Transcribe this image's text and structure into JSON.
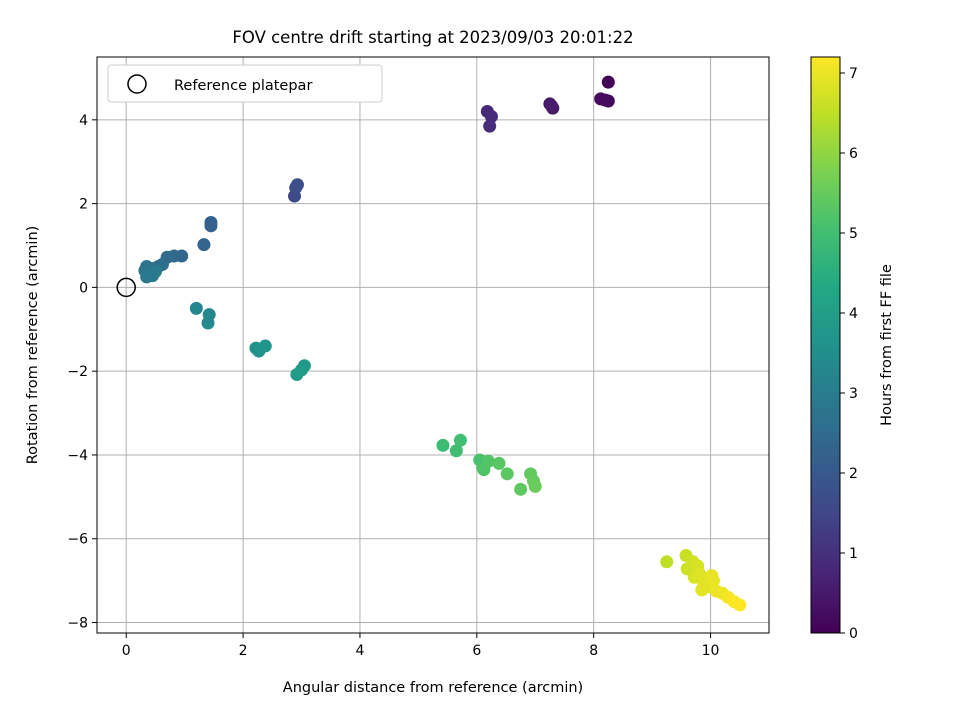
{
  "chart_data": {
    "type": "scatter",
    "title": "FOV centre drift starting at 2023/09/03 20:01:22",
    "xlabel": "Angular distance from reference (arcmin)",
    "ylabel": "Rotation from reference (arcmin)",
    "xlim": [
      -0.5,
      11.0
    ],
    "ylim": [
      -8.25,
      5.5
    ],
    "xticks": [
      0,
      2,
      4,
      6,
      8,
      10
    ],
    "yticks": [
      -8,
      -6,
      -4,
      -2,
      0,
      2,
      4
    ],
    "xtick_labels": [
      "0",
      "2",
      "4",
      "6",
      "8",
      "10"
    ],
    "ytick_labels": [
      "−8",
      "−6",
      "−4",
      "−2",
      "0",
      "2",
      "4"
    ],
    "grid": true,
    "legend": {
      "position": "top-left",
      "entries": [
        "Reference platepar"
      ]
    },
    "reference_point": {
      "x": 0,
      "y": 0,
      "label": "Reference platepar"
    },
    "colorbar": {
      "label": "Hours from first FF file",
      "range": [
        0,
        7.2
      ],
      "ticks": [
        0,
        1,
        2,
        3,
        4,
        5,
        6,
        7
      ],
      "tick_labels": [
        "0",
        "1",
        "2",
        "3",
        "4",
        "5",
        "6",
        "7"
      ],
      "colormap": "viridis"
    },
    "points": [
      {
        "x": 8.25,
        "y": 4.9,
        "t": 0.05
      },
      {
        "x": 8.25,
        "y": 4.45,
        "t": 0.1
      },
      {
        "x": 8.12,
        "y": 4.5,
        "t": 0.15
      },
      {
        "x": 8.2,
        "y": 4.47,
        "t": 0.2
      },
      {
        "x": 7.25,
        "y": 4.38,
        "t": 0.45
      },
      {
        "x": 7.3,
        "y": 4.28,
        "t": 0.5
      },
      {
        "x": 7.28,
        "y": 4.33,
        "t": 0.55
      },
      {
        "x": 6.18,
        "y": 4.2,
        "t": 0.8
      },
      {
        "x": 6.25,
        "y": 4.08,
        "t": 0.85
      },
      {
        "x": 6.22,
        "y": 3.85,
        "t": 0.9
      },
      {
        "x": 2.88,
        "y": 2.18,
        "t": 1.6
      },
      {
        "x": 2.9,
        "y": 2.38,
        "t": 1.65
      },
      {
        "x": 2.93,
        "y": 2.45,
        "t": 1.7
      },
      {
        "x": 1.45,
        "y": 1.55,
        "t": 2.2
      },
      {
        "x": 1.45,
        "y": 1.47,
        "t": 2.25
      },
      {
        "x": 1.33,
        "y": 1.02,
        "t": 2.3
      },
      {
        "x": 0.95,
        "y": 0.75,
        "t": 2.4
      },
      {
        "x": 0.82,
        "y": 0.75,
        "t": 2.45
      },
      {
        "x": 0.7,
        "y": 0.72,
        "t": 2.5
      },
      {
        "x": 0.62,
        "y": 0.55,
        "t": 2.55
      },
      {
        "x": 0.55,
        "y": 0.5,
        "t": 2.6
      },
      {
        "x": 0.45,
        "y": 0.45,
        "t": 2.65
      },
      {
        "x": 0.35,
        "y": 0.5,
        "t": 2.7
      },
      {
        "x": 0.32,
        "y": 0.4,
        "t": 2.75
      },
      {
        "x": 0.38,
        "y": 0.3,
        "t": 2.8
      },
      {
        "x": 0.45,
        "y": 0.28,
        "t": 2.85
      },
      {
        "x": 0.35,
        "y": 0.25,
        "t": 2.9
      },
      {
        "x": 0.5,
        "y": 0.38,
        "t": 2.95
      },
      {
        "x": 1.2,
        "y": -0.5,
        "t": 3.3
      },
      {
        "x": 1.42,
        "y": -0.65,
        "t": 3.35
      },
      {
        "x": 1.4,
        "y": -0.85,
        "t": 3.4
      },
      {
        "x": 2.22,
        "y": -1.45,
        "t": 3.6
      },
      {
        "x": 2.27,
        "y": -1.52,
        "t": 3.65
      },
      {
        "x": 2.38,
        "y": -1.4,
        "t": 3.7
      },
      {
        "x": 3.05,
        "y": -1.87,
        "t": 3.85
      },
      {
        "x": 3.0,
        "y": -1.97,
        "t": 3.9
      },
      {
        "x": 2.92,
        "y": -2.08,
        "t": 3.95
      },
      {
        "x": 5.42,
        "y": -3.77,
        "t": 4.9
      },
      {
        "x": 5.65,
        "y": -3.9,
        "t": 4.95
      },
      {
        "x": 5.72,
        "y": -3.65,
        "t": 5.0
      },
      {
        "x": 6.05,
        "y": -4.12,
        "t": 5.1
      },
      {
        "x": 6.1,
        "y": -4.3,
        "t": 5.15
      },
      {
        "x": 6.12,
        "y": -4.35,
        "t": 5.2
      },
      {
        "x": 6.2,
        "y": -4.15,
        "t": 5.25
      },
      {
        "x": 6.38,
        "y": -4.2,
        "t": 5.3
      },
      {
        "x": 6.52,
        "y": -4.45,
        "t": 5.35
      },
      {
        "x": 6.75,
        "y": -4.82,
        "t": 5.4
      },
      {
        "x": 6.92,
        "y": -4.45,
        "t": 5.45
      },
      {
        "x": 6.97,
        "y": -4.62,
        "t": 5.5
      },
      {
        "x": 7.0,
        "y": -4.75,
        "t": 5.55
      },
      {
        "x": 9.25,
        "y": -6.55,
        "t": 6.5
      },
      {
        "x": 9.58,
        "y": -6.4,
        "t": 6.6
      },
      {
        "x": 9.6,
        "y": -6.72,
        "t": 6.65
      },
      {
        "x": 9.7,
        "y": -6.55,
        "t": 6.7
      },
      {
        "x": 9.78,
        "y": -6.65,
        "t": 6.75
      },
      {
        "x": 9.72,
        "y": -6.92,
        "t": 6.8
      },
      {
        "x": 9.82,
        "y": -6.85,
        "t": 6.85
      },
      {
        "x": 9.88,
        "y": -7.05,
        "t": 6.88
      },
      {
        "x": 9.85,
        "y": -7.22,
        "t": 6.9
      },
      {
        "x": 9.95,
        "y": -7.15,
        "t": 6.92
      },
      {
        "x": 10.02,
        "y": -6.88,
        "t": 6.95
      },
      {
        "x": 10.05,
        "y": -7.0,
        "t": 6.98
      },
      {
        "x": 10.1,
        "y": -7.25,
        "t": 7.0
      },
      {
        "x": 10.2,
        "y": -7.3,
        "t": 7.05
      },
      {
        "x": 10.3,
        "y": -7.4,
        "t": 7.1
      },
      {
        "x": 10.4,
        "y": -7.5,
        "t": 7.15
      },
      {
        "x": 10.5,
        "y": -7.58,
        "t": 7.2
      }
    ]
  }
}
